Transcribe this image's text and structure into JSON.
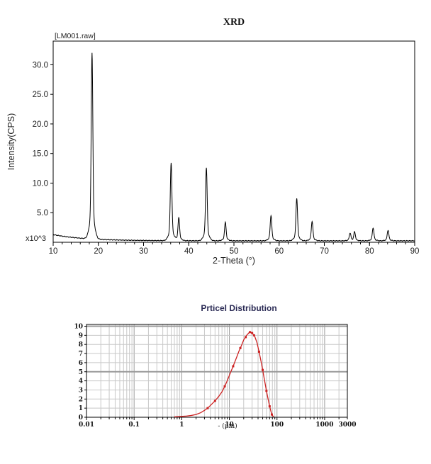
{
  "page": {
    "background": "#ffffff"
  },
  "chart_data": [
    {
      "id": "xrd",
      "type": "line",
      "title": "XRD",
      "dataset_label": "[LM001.raw]",
      "xlabel": "2-Theta (°)",
      "ylabel": "Intensity(CPS)",
      "y_scale_note": "x10^3",
      "xlim": [
        10,
        90
      ],
      "ylim": [
        0,
        34
      ],
      "x_major_ticks": [
        10,
        20,
        30,
        40,
        50,
        60,
        70,
        80,
        90
      ],
      "x_minor_tick_step": 2,
      "y_major_ticks": [
        5,
        10,
        15,
        20,
        25,
        30
      ],
      "y_tick_labels": [
        "5.0",
        "10.0",
        "15.0",
        "20.0",
        "25.0",
        "30.0"
      ],
      "grid": false,
      "legend": "none",
      "line_color": "#000000",
      "baseline": {
        "start_value": 1.3,
        "floor_value": 0.25,
        "decay_scale_deg": 7
      },
      "peaks": [
        {
          "two_theta": 18.6,
          "intensity_k_cps": 31.5
        },
        {
          "two_theta": 36.1,
          "intensity_k_cps": 13.2
        },
        {
          "two_theta": 37.8,
          "intensity_k_cps": 3.9
        },
        {
          "two_theta": 43.9,
          "intensity_k_cps": 12.4
        },
        {
          "two_theta": 48.1,
          "intensity_k_cps": 3.1
        },
        {
          "two_theta": 58.2,
          "intensity_k_cps": 4.3
        },
        {
          "two_theta": 63.9,
          "intensity_k_cps": 7.2
        },
        {
          "two_theta": 67.3,
          "intensity_k_cps": 3.3
        },
        {
          "two_theta": 75.7,
          "intensity_k_cps": 1.3
        },
        {
          "two_theta": 76.7,
          "intensity_k_cps": 1.5
        },
        {
          "two_theta": 80.8,
          "intensity_k_cps": 2.2
        },
        {
          "two_theta": 84.1,
          "intensity_k_cps": 1.8
        }
      ]
    },
    {
      "id": "particle-distribution",
      "type": "line",
      "title": "Prticel Distribution",
      "title_color": "#2b2b55",
      "xlabel": "- (µm)",
      "x_scale": "log",
      "xlim": [
        0.01,
        3000
      ],
      "ylim": [
        0,
        10
      ],
      "x_tick_values": [
        0.01,
        0.1,
        1,
        10,
        100,
        1000,
        3000
      ],
      "x_tick_labels": [
        "0.01",
        "0.1",
        "1",
        "10",
        "100",
        "1000",
        "3000"
      ],
      "y_ticks": [
        0,
        1,
        2,
        3,
        4,
        5,
        6,
        7,
        8,
        9,
        10
      ],
      "grid": true,
      "grid_minor_color": "#c8c8c8",
      "grid_major_color": "#9a9a9a",
      "line_color": "#cc2222",
      "points": [
        [
          0.7,
          0.05
        ],
        [
          0.9,
          0.08
        ],
        [
          1.2,
          0.12
        ],
        [
          1.6,
          0.2
        ],
        [
          2.0,
          0.3
        ],
        [
          2.5,
          0.5
        ],
        [
          3.0,
          0.75
        ],
        [
          3.5,
          1.0
        ],
        [
          4.0,
          1.3
        ],
        [
          5.0,
          1.8
        ],
        [
          6.0,
          2.3
        ],
        [
          7.0,
          2.8
        ],
        [
          8.0,
          3.4
        ],
        [
          9.0,
          4.0
        ],
        [
          10.0,
          4.6
        ],
        [
          12.0,
          5.6
        ],
        [
          14.0,
          6.5
        ],
        [
          16.0,
          7.3
        ],
        [
          18.0,
          7.9
        ],
        [
          20.0,
          8.5
        ],
        [
          23.0,
          9.0
        ],
        [
          26.0,
          9.3
        ],
        [
          28.0,
          9.35
        ],
        [
          30.0,
          9.25
        ],
        [
          34.0,
          8.9
        ],
        [
          38.0,
          8.2
        ],
        [
          42.0,
          7.2
        ],
        [
          46.0,
          6.2
        ],
        [
          50.0,
          5.2
        ],
        [
          55.0,
          4.0
        ],
        [
          60.0,
          2.9
        ],
        [
          65.0,
          2.0
        ],
        [
          70.0,
          1.2
        ],
        [
          75.0,
          0.6
        ],
        [
          80.0,
          0.2
        ],
        [
          85.0,
          0.05
        ]
      ],
      "marker_points": [
        [
          3.5,
          1.0
        ],
        [
          5.0,
          1.8
        ],
        [
          8.0,
          3.4
        ],
        [
          12.0,
          5.6
        ],
        [
          17.0,
          7.6
        ],
        [
          22.0,
          8.8
        ],
        [
          27.0,
          9.35
        ],
        [
          30.0,
          9.25
        ],
        [
          33.0,
          9.0
        ],
        [
          42.0,
          7.2
        ],
        [
          50.0,
          5.2
        ],
        [
          60.0,
          2.9
        ],
        [
          70.0,
          1.2
        ],
        [
          78.0,
          0.3
        ]
      ]
    }
  ]
}
